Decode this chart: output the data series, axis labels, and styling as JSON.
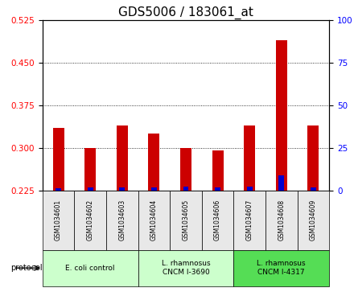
{
  "title": "GDS5006 / 183061_at",
  "samples": [
    "GSM1034601",
    "GSM1034602",
    "GSM1034603",
    "GSM1034604",
    "GSM1034605",
    "GSM1034606",
    "GSM1034607",
    "GSM1034608",
    "GSM1034609"
  ],
  "transformed_count": [
    0.335,
    0.3,
    0.34,
    0.325,
    0.3,
    0.295,
    0.34,
    0.49,
    0.34
  ],
  "percentile_rank": [
    1.5,
    2.0,
    2.0,
    2.0,
    2.5,
    2.0,
    2.5,
    9.0,
    2.0
  ],
  "baseline": 0.225,
  "ylim_left": [
    0.225,
    0.525
  ],
  "yticks_left": [
    0.225,
    0.3,
    0.375,
    0.45,
    0.525
  ],
  "ylim_right": [
    0,
    100
  ],
  "yticks_right": [
    0,
    25,
    50,
    75,
    100
  ],
  "percentile_scale_factor": 0.003,
  "protocols": [
    {
      "label": "E. coli control",
      "samples": [
        0,
        1,
        2
      ],
      "color": "#ccffcc"
    },
    {
      "label": "L. rhamnosus\nCNCM I-3690",
      "samples": [
        3,
        4,
        5
      ],
      "color": "#ccffcc"
    },
    {
      "label": "L. rhamnosus\nCNCM I-4317",
      "samples": [
        6,
        7,
        8
      ],
      "color": "#66ee66"
    }
  ],
  "bar_color_red": "#cc0000",
  "bar_color_blue": "#0000cc",
  "bg_color": "#e8e8e8",
  "grid_color": "#000000",
  "title_fontsize": 11,
  "tick_fontsize": 7.5,
  "label_fontsize": 8
}
